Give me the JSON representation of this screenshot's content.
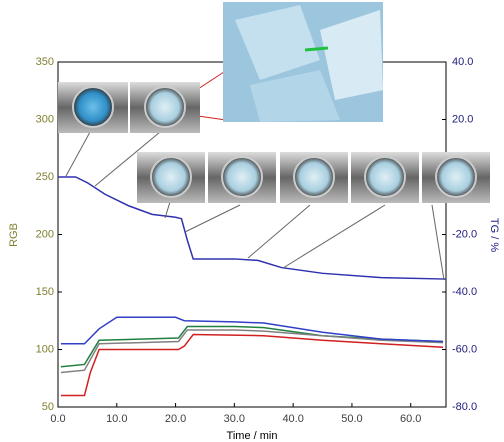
{
  "chart_data": {
    "type": "line",
    "xlabel": "Time / min",
    "ylabel": "RGB",
    "y2label": "TG / %",
    "xlim": [
      0,
      66
    ],
    "xticks": [
      {
        "value": 0,
        "label": "0.0"
      },
      {
        "value": 10,
        "label": "10.0"
      },
      {
        "value": 20,
        "label": "20.0"
      },
      {
        "value": 30,
        "label": "30.0"
      },
      {
        "value": 40,
        "label": "40.0"
      },
      {
        "value": 50,
        "label": "50.0"
      },
      {
        "value": 60,
        "label": "60.0"
      }
    ],
    "ylim": [
      50,
      350
    ],
    "yticks": [
      50,
      100,
      150,
      200,
      250,
      300,
      350
    ],
    "y2lim": [
      -80,
      40
    ],
    "y2ticks": [
      {
        "value": 40,
        "label": "40.0"
      },
      {
        "value": 20,
        "label": "20.0"
      },
      {
        "value": -20,
        "label": "-20.0"
      },
      {
        "value": -40,
        "label": "-40.0"
      },
      {
        "value": -60,
        "label": "-60.0"
      },
      {
        "value": -80,
        "label": "-80.0"
      }
    ],
    "series": [
      {
        "color": "#3030b0",
        "axis": "y2",
        "x": [
          0,
          3,
          5,
          8,
          12,
          16,
          20,
          21,
          22,
          23,
          30,
          34,
          38,
          45,
          55,
          66
        ],
        "values": [
          0,
          0,
          -2,
          -6,
          -10,
          -13,
          -14,
          -14.5,
          -22,
          -28.5,
          -28.5,
          -29,
          -31.5,
          -33.5,
          -35,
          -35.5
        ]
      },
      {
        "color": "#d02020",
        "x": [
          0.5,
          4.5,
          5.5,
          7,
          20.5,
          21.5,
          23,
          35,
          45,
          55,
          65.5
        ],
        "values": [
          60,
          60,
          80,
          100,
          100,
          103,
          113,
          112,
          108,
          105,
          102
        ]
      },
      {
        "color": "#208040",
        "x": [
          0.5,
          4.5,
          7,
          20.5,
          22,
          30,
          35,
          45,
          55,
          65.5
        ],
        "values": [
          85,
          87,
          108,
          110,
          120,
          120,
          119,
          112,
          109,
          107
        ]
      },
      {
        "color": "#808080",
        "x": [
          0.5,
          4.5,
          7,
          20.5,
          22,
          30,
          35,
          45,
          55,
          65.5
        ],
        "values": [
          80,
          82,
          105,
          107,
          117,
          117,
          116,
          112,
          108,
          106
        ]
      },
      {
        "color": "#3040c8",
        "x": [
          0.5,
          4.5,
          7,
          10,
          20,
          21.5,
          30,
          35,
          45,
          55,
          65.5
        ],
        "values": [
          105,
          105,
          118,
          128,
          128,
          125,
          124,
          123,
          115,
          109,
          107
        ]
      }
    ]
  }
}
